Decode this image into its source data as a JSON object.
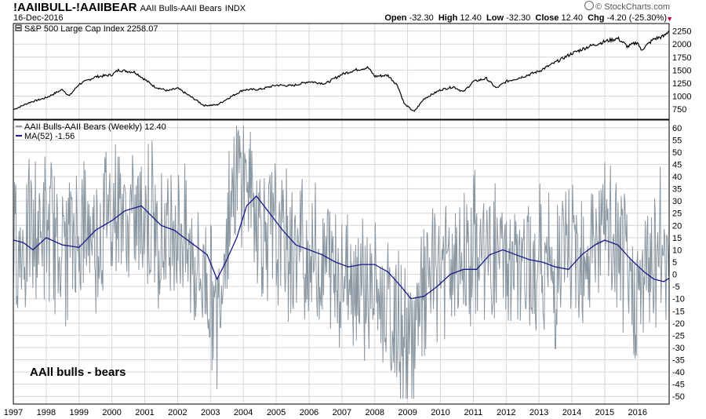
{
  "header": {
    "symbol": "!AAIIBULL-!AAIIBEAR",
    "description": "AAII Bulls-AAII Bears",
    "exchange": "INDX",
    "date": "16-Dec-2016",
    "open_label": "Open",
    "open_value": "-32.30",
    "high_label": "High",
    "high_value": "12.40",
    "low_label": "Low",
    "low_value": "-32.30",
    "close_label": "Close",
    "close_value": "12.40",
    "chg_label": "Chg",
    "chg_value": "-4.20 (-25.30%)",
    "logo": "© StockCharts.com"
  },
  "colors": {
    "sp500": "#000000",
    "bulls_bears": "#8a96a0",
    "ma": "#1a1a8c",
    "grid": "#d6d6d6",
    "border": "#000000",
    "down": "#c0004a"
  },
  "chart_data": [
    {
      "type": "line",
      "panel": "price",
      "legend": "S&P 500 Large Cap Index 2258.07",
      "series": [
        {
          "name": "S&P 500 Large Cap Index",
          "x": [
            1997.0,
            1997.5,
            1998.0,
            1998.5,
            1998.7,
            1999.0,
            1999.5,
            2000.0,
            2000.2,
            2000.7,
            2001.0,
            2001.3,
            2001.7,
            2002.0,
            2002.5,
            2002.8,
            2003.2,
            2003.6,
            2004.0,
            2004.5,
            2005.0,
            2005.5,
            2006.0,
            2006.5,
            2007.0,
            2007.4,
            2007.8,
            2008.0,
            2008.4,
            2008.7,
            2008.9,
            2009.2,
            2009.5,
            2010.0,
            2010.4,
            2010.7,
            2011.0,
            2011.4,
            2011.7,
            2012.0,
            2012.5,
            2013.0,
            2013.5,
            2014.0,
            2014.5,
            2015.0,
            2015.4,
            2015.7,
            2016.0,
            2016.1,
            2016.5,
            2016.8,
            2016.96
          ],
          "values": [
            740,
            880,
            970,
            1130,
            1000,
            1230,
            1370,
            1410,
            1500,
            1460,
            1320,
            1180,
            1100,
            1150,
            950,
            820,
            830,
            980,
            1120,
            1130,
            1210,
            1200,
            1280,
            1240,
            1420,
            1500,
            1550,
            1380,
            1400,
            1200,
            850,
            700,
            950,
            1120,
            1180,
            1080,
            1280,
            1340,
            1150,
            1280,
            1370,
            1480,
            1650,
            1820,
            1950,
            2050,
            2110,
            1950,
            2040,
            1880,
            2100,
            2150,
            2258
          ]
        }
      ],
      "y_ticks": [
        750,
        1000,
        1250,
        1500,
        1750,
        2000,
        2250
      ],
      "ylim": [
        600,
        2350
      ]
    },
    {
      "type": "line",
      "panel": "indicator",
      "title": "AAll bulls - bears",
      "series": [
        {
          "name": "AAII Bulls-AAII Bears (Weekly) 12.40",
          "x": [
            1997.0,
            1997.5,
            1998.0,
            1998.5,
            1999.0,
            1999.5,
            2000.0,
            2000.5,
            2001.0,
            2001.5,
            2002.0,
            2002.5,
            2003.0,
            2003.2,
            2003.5,
            2004.0,
            2004.3,
            2004.5,
            2005.0,
            2005.5,
            2006.0,
            2006.5,
            2007.0,
            2007.5,
            2008.0,
            2008.5,
            2009.0,
            2009.3,
            2009.6,
            2010.0,
            2010.5,
            2011.0,
            2011.5,
            2012.0,
            2012.5,
            2013.0,
            2013.5,
            2014.0,
            2014.5,
            2015.0,
            2015.5,
            2016.0,
            2016.5,
            2016.96
          ],
          "values": [
            10,
            15,
            20,
            10,
            18,
            15,
            30,
            20,
            28,
            15,
            22,
            5,
            -5,
            -20,
            25,
            45,
            30,
            20,
            15,
            10,
            8,
            5,
            2,
            0,
            -10,
            -18,
            -30,
            -20,
            -5,
            5,
            0,
            10,
            8,
            5,
            0,
            6,
            0,
            12,
            10,
            18,
            5,
            -10,
            10,
            12.4
          ]
        },
        {
          "name": "MA(52) -1.56",
          "x": [
            1997.0,
            1997.3,
            1997.6,
            1998.0,
            1998.5,
            1999.0,
            1999.5,
            2000.0,
            2000.4,
            2000.9,
            2001.2,
            2001.5,
            2001.9,
            2002.2,
            2002.5,
            2002.9,
            2003.2,
            2003.5,
            2003.8,
            2004.1,
            2004.4,
            2004.8,
            2005.2,
            2005.6,
            2006.0,
            2006.4,
            2006.8,
            2007.2,
            2007.6,
            2008.0,
            2008.4,
            2008.8,
            2009.1,
            2009.5,
            2009.9,
            2010.3,
            2010.7,
            2011.1,
            2011.5,
            2011.9,
            2012.3,
            2012.7,
            2013.1,
            2013.5,
            2013.9,
            2014.3,
            2014.7,
            2015.0,
            2015.4,
            2015.8,
            2016.2,
            2016.5,
            2016.8,
            2016.96
          ],
          "values": [
            14,
            13,
            10,
            15,
            12,
            11,
            18,
            22,
            26,
            28,
            24,
            20,
            18,
            15,
            12,
            8,
            -2,
            6,
            15,
            28,
            32,
            25,
            18,
            12,
            10,
            8,
            5,
            3,
            4,
            4,
            1,
            -5,
            -10,
            -9,
            -5,
            0,
            2,
            2,
            8,
            10,
            8,
            6,
            5,
            3,
            2,
            8,
            12,
            14,
            12,
            6,
            1,
            -2,
            -3,
            -1.56
          ]
        }
      ],
      "y_ticks": [
        60,
        55,
        50,
        45,
        40,
        35,
        30,
        25,
        20,
        15,
        10,
        5,
        0,
        -5,
        -10,
        -15,
        -20,
        -25,
        -30,
        -35,
        -40,
        -45,
        -50
      ],
      "ylim": [
        -52.5,
        62.5
      ]
    }
  ],
  "x_axis_years": [
    "1997",
    "1998",
    "1999",
    "2000",
    "2001",
    "2002",
    "2003",
    "2004",
    "2005",
    "2006",
    "2007",
    "2008",
    "2009",
    "2010",
    "2011",
    "2012",
    "2013",
    "2014",
    "2015",
    "2016"
  ]
}
